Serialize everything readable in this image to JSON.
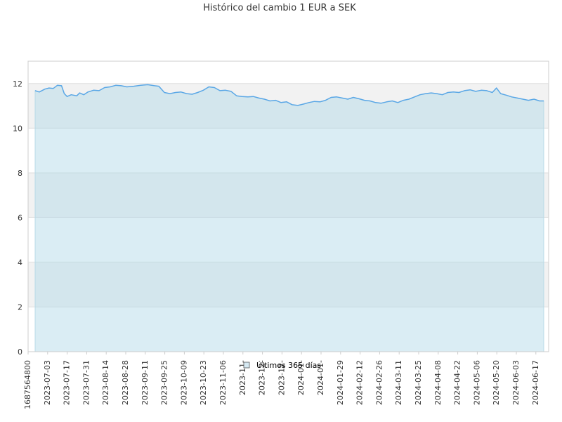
{
  "chart_data": {
    "type": "area",
    "title": "Histórico del cambio 1 EUR a SEK",
    "xlabel": "",
    "ylabel": "",
    "ylim": [
      0,
      13
    ],
    "yticks": [
      0,
      2,
      4,
      6,
      8,
      10,
      12
    ],
    "xtick_labels": [
      "1687564800",
      "2023-07-03",
      "2023-07-17",
      "2023-07-31",
      "2023-08-14",
      "2023-08-28",
      "2023-09-11",
      "2023-09-25",
      "2023-10-09",
      "2023-10-23",
      "2023-11-06",
      "2023-11-",
      "2023-12-",
      "2023-12-",
      "2024-01-",
      "2024-01-",
      "2024-01-29",
      "2024-02-12",
      "2024-02-26",
      "2024-03-11",
      "2024-03-25",
      "2024-04-08",
      "2024-04-22",
      "2024-05-06",
      "2024-05-20",
      "2024-06-03",
      "2024-06-17"
    ],
    "grid": true,
    "legend_position": "bottom-center",
    "colors": {
      "line": "#5aa7e6",
      "fill": "#add8e6",
      "band": "#f2f2f2",
      "grid": "#dddddd"
    },
    "series": [
      {
        "name": "Últimos 365 días",
        "points": [
          [
            "2023-06-24",
            11.68
          ],
          [
            "2023-06-27",
            11.62
          ],
          [
            "2023-07-01",
            11.75
          ],
          [
            "2023-07-04",
            11.8
          ],
          [
            "2023-07-07",
            11.78
          ],
          [
            "2023-07-10",
            11.92
          ],
          [
            "2023-07-13",
            11.9
          ],
          [
            "2023-07-15",
            11.55
          ],
          [
            "2023-07-17",
            11.42
          ],
          [
            "2023-07-20",
            11.5
          ],
          [
            "2023-07-24",
            11.45
          ],
          [
            "2023-07-26",
            11.58
          ],
          [
            "2023-07-29",
            11.5
          ],
          [
            "2023-08-01",
            11.62
          ],
          [
            "2023-08-05",
            11.7
          ],
          [
            "2023-08-09",
            11.68
          ],
          [
            "2023-08-13",
            11.82
          ],
          [
            "2023-08-17",
            11.85
          ],
          [
            "2023-08-21",
            11.92
          ],
          [
            "2023-08-25",
            11.9
          ],
          [
            "2023-08-29",
            11.85
          ],
          [
            "2023-09-03",
            11.88
          ],
          [
            "2023-09-08",
            11.92
          ],
          [
            "2023-09-13",
            11.95
          ],
          [
            "2023-09-18",
            11.9
          ],
          [
            "2023-09-21",
            11.88
          ],
          [
            "2023-09-25",
            11.6
          ],
          [
            "2023-09-29",
            11.55
          ],
          [
            "2023-10-03",
            11.6
          ],
          [
            "2023-10-07",
            11.62
          ],
          [
            "2023-10-11",
            11.55
          ],
          [
            "2023-10-15",
            11.52
          ],
          [
            "2023-10-19",
            11.6
          ],
          [
            "2023-10-23",
            11.7
          ],
          [
            "2023-10-27",
            11.85
          ],
          [
            "2023-10-31",
            11.82
          ],
          [
            "2023-11-04",
            11.68
          ],
          [
            "2023-11-08",
            11.7
          ],
          [
            "2023-11-12",
            11.65
          ],
          [
            "2023-11-16",
            11.45
          ],
          [
            "2023-11-20",
            11.42
          ],
          [
            "2023-11-24",
            11.4
          ],
          [
            "2023-11-28",
            11.42
          ],
          [
            "2023-12-02",
            11.35
          ],
          [
            "2023-12-06",
            11.3
          ],
          [
            "2023-12-10",
            11.22
          ],
          [
            "2023-12-14",
            11.25
          ],
          [
            "2023-12-18",
            11.15
          ],
          [
            "2023-12-22",
            11.18
          ],
          [
            "2023-12-26",
            11.05
          ],
          [
            "2023-12-30",
            11.02
          ],
          [
            "2024-01-03",
            11.08
          ],
          [
            "2024-01-07",
            11.15
          ],
          [
            "2024-01-11",
            11.2
          ],
          [
            "2024-01-15",
            11.18
          ],
          [
            "2024-01-19",
            11.25
          ],
          [
            "2024-01-23",
            11.38
          ],
          [
            "2024-01-27",
            11.4
          ],
          [
            "2024-01-31",
            11.35
          ],
          [
            "2024-02-04",
            11.3
          ],
          [
            "2024-02-08",
            11.38
          ],
          [
            "2024-02-12",
            11.32
          ],
          [
            "2024-02-16",
            11.25
          ],
          [
            "2024-02-20",
            11.22
          ],
          [
            "2024-02-24",
            11.15
          ],
          [
            "2024-02-28",
            11.12
          ],
          [
            "2024-03-03",
            11.18
          ],
          [
            "2024-03-07",
            11.22
          ],
          [
            "2024-03-11",
            11.15
          ],
          [
            "2024-03-15",
            11.25
          ],
          [
            "2024-03-19",
            11.3
          ],
          [
            "2024-03-23",
            11.4
          ],
          [
            "2024-03-27",
            11.5
          ],
          [
            "2024-03-31",
            11.55
          ],
          [
            "2024-04-04",
            11.58
          ],
          [
            "2024-04-08",
            11.55
          ],
          [
            "2024-04-12",
            11.5
          ],
          [
            "2024-04-16",
            11.6
          ],
          [
            "2024-04-20",
            11.62
          ],
          [
            "2024-04-24",
            11.6
          ],
          [
            "2024-04-28",
            11.68
          ],
          [
            "2024-05-02",
            11.72
          ],
          [
            "2024-05-06",
            11.65
          ],
          [
            "2024-05-10",
            11.7
          ],
          [
            "2024-05-14",
            11.68
          ],
          [
            "2024-05-18",
            11.6
          ],
          [
            "2024-05-21",
            11.8
          ],
          [
            "2024-05-24",
            11.55
          ],
          [
            "2024-05-28",
            11.48
          ],
          [
            "2024-06-01",
            11.4
          ],
          [
            "2024-06-05",
            11.35
          ],
          [
            "2024-06-09",
            11.3
          ],
          [
            "2024-06-13",
            11.25
          ],
          [
            "2024-06-17",
            11.3
          ],
          [
            "2024-06-21",
            11.22
          ],
          [
            "2024-06-24",
            11.22
          ]
        ]
      }
    ]
  }
}
